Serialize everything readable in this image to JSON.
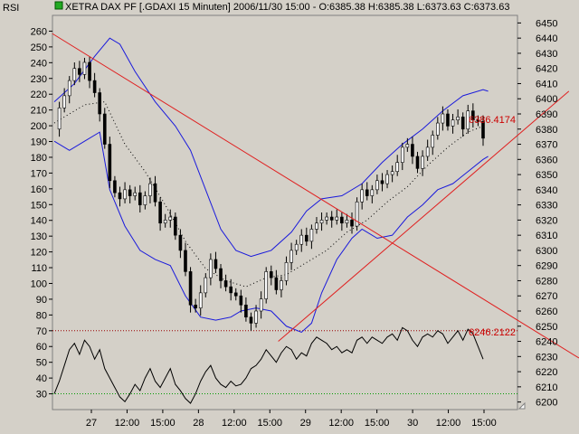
{
  "header": {
    "indicator_label": "RSI",
    "title": "XETRA DAX PF [.GDAXI  15 Minuten] 2006/11/30 15:00 - O:6385.38 H:6385.38 L:6373.63 C:6373.63",
    "title_icon": "green-square-icon"
  },
  "colors": {
    "background": "#d4d0c8",
    "trendline": "#e02020",
    "bollinger": "#1a1adc",
    "candle_up": "#ffffff",
    "candle_down": "#000000",
    "rsi_line": "#000000",
    "rsi_overbought": "#990000",
    "rsi_oversold": "#009900"
  },
  "chart_data": {
    "type": "candlestick",
    "title": "XETRA DAX PF [.GDAXI  15 Minuten] 2006/11/30 15:00 - O:6385.38 H:6385.38 L:6373.63 C:6373.63",
    "last_bar": {
      "date": "2006/11/30",
      "time": "15:00",
      "open": 6385.38,
      "high": 6385.38,
      "low": 6373.63,
      "close": 6373.63
    },
    "price_axis": {
      "side": "right",
      "range": [
        6195,
        6455
      ],
      "ticks": [
        6200,
        6210,
        6220,
        6230,
        6240,
        6250,
        6260,
        6270,
        6280,
        6290,
        6300,
        6310,
        6320,
        6330,
        6340,
        6350,
        6360,
        6370,
        6380,
        6390,
        6400,
        6410,
        6420,
        6430,
        6440,
        6450
      ]
    },
    "left_axis": {
      "range": [
        20,
        270
      ],
      "ticks": [
        30,
        40,
        50,
        60,
        70,
        80,
        90,
        100,
        110,
        120,
        130,
        140,
        150,
        160,
        170,
        180,
        190,
        200,
        210,
        220,
        230,
        240,
        250,
        260
      ]
    },
    "x_axis_labels": [
      "27",
      "12:00",
      "15:00",
      "28",
      "12:00",
      "15:00",
      "29",
      "12:00",
      "15:00",
      "30",
      "12:00",
      "15:00"
    ],
    "annotations": [
      {
        "label": "6386.4174",
        "value": 6386.4174
      },
      {
        "label": "6246.2122",
        "value": 6246.2122
      }
    ],
    "price_path": [
      [
        0,
        6380
      ],
      [
        5,
        6394
      ],
      [
        10,
        6402
      ],
      [
        15,
        6412
      ],
      [
        20,
        6420
      ],
      [
        25,
        6416
      ],
      [
        30,
        6424
      ],
      [
        35,
        6412
      ],
      [
        40,
        6404
      ],
      [
        45,
        6390
      ],
      [
        50,
        6370
      ],
      [
        55,
        6346
      ],
      [
        60,
        6338
      ],
      [
        65,
        6334
      ],
      [
        70,
        6340
      ],
      [
        75,
        6336
      ],
      [
        80,
        6338
      ],
      [
        85,
        6330
      ],
      [
        90,
        6336
      ],
      [
        95,
        6344
      ],
      [
        100,
        6332
      ],
      [
        105,
        6318
      ],
      [
        110,
        6320
      ],
      [
        115,
        6322
      ],
      [
        120,
        6310
      ],
      [
        125,
        6300
      ],
      [
        130,
        6286
      ],
      [
        135,
        6264
      ],
      [
        140,
        6262
      ],
      [
        145,
        6272
      ],
      [
        150,
        6282
      ],
      [
        155,
        6294
      ],
      [
        160,
        6288
      ],
      [
        165,
        6280
      ],
      [
        170,
        6276
      ],
      [
        175,
        6272
      ],
      [
        180,
        6270
      ],
      [
        185,
        6264
      ],
      [
        190,
        6256
      ],
      [
        195,
        6252
      ],
      [
        200,
        6260
      ],
      [
        205,
        6268
      ],
      [
        210,
        6286
      ],
      [
        215,
        6282
      ],
      [
        220,
        6274
      ],
      [
        225,
        6280
      ],
      [
        230,
        6292
      ],
      [
        235,
        6300
      ],
      [
        240,
        6304
      ],
      [
        245,
        6310
      ],
      [
        250,
        6306
      ],
      [
        255,
        6314
      ],
      [
        260,
        6318
      ],
      [
        265,
        6320
      ],
      [
        270,
        6322
      ],
      [
        275,
        6320
      ],
      [
        280,
        6322
      ],
      [
        285,
        6318
      ],
      [
        290,
        6320
      ],
      [
        295,
        6316
      ],
      [
        300,
        6332
      ],
      [
        305,
        6340
      ],
      [
        310,
        6336
      ],
      [
        315,
        6340
      ],
      [
        320,
        6346
      ],
      [
        325,
        6344
      ],
      [
        330,
        6350
      ],
      [
        335,
        6352
      ],
      [
        340,
        6358
      ],
      [
        345,
        6368
      ],
      [
        350,
        6370
      ],
      [
        355,
        6362
      ],
      [
        360,
        6354
      ],
      [
        365,
        6362
      ],
      [
        370,
        6368
      ],
      [
        375,
        6376
      ],
      [
        380,
        6384
      ],
      [
        385,
        6390
      ],
      [
        390,
        6382
      ],
      [
        395,
        6386
      ],
      [
        400,
        6388
      ],
      [
        405,
        6380
      ],
      [
        410,
        6392
      ],
      [
        415,
        6386
      ],
      [
        420,
        6385
      ],
      [
        425,
        6374
      ]
    ],
    "bollinger": {
      "upper": [
        [
          0,
          6398
        ],
        [
          20,
          6410
        ],
        [
          40,
          6428
        ],
        [
          55,
          6440
        ],
        [
          65,
          6436
        ],
        [
          80,
          6418
        ],
        [
          100,
          6398
        ],
        [
          120,
          6382
        ],
        [
          135,
          6366
        ],
        [
          150,
          6340
        ],
        [
          165,
          6314
        ],
        [
          180,
          6300
        ],
        [
          195,
          6296
        ],
        [
          205,
          6298
        ],
        [
          215,
          6300
        ],
        [
          235,
          6312
        ],
        [
          250,
          6326
        ],
        [
          265,
          6334
        ],
        [
          285,
          6336
        ],
        [
          305,
          6344
        ],
        [
          325,
          6358
        ],
        [
          345,
          6370
        ],
        [
          365,
          6380
        ],
        [
          385,
          6392
        ],
        [
          405,
          6402
        ],
        [
          425,
          6406
        ],
        [
          430,
          6405
        ]
      ],
      "lower": [
        [
          0,
          6372
        ],
        [
          15,
          6366
        ],
        [
          30,
          6372
        ],
        [
          45,
          6378
        ],
        [
          55,
          6340
        ],
        [
          70,
          6316
        ],
        [
          85,
          6300
        ],
        [
          100,
          6294
        ],
        [
          115,
          6290
        ],
        [
          130,
          6270
        ],
        [
          145,
          6256
        ],
        [
          160,
          6254
        ],
        [
          175,
          6256
        ],
        [
          185,
          6260
        ],
        [
          200,
          6262
        ],
        [
          215,
          6260
        ],
        [
          230,
          6250
        ],
        [
          245,
          6246
        ],
        [
          255,
          6252
        ],
        [
          265,
          6272
        ],
        [
          280,
          6294
        ],
        [
          295,
          6308
        ],
        [
          305,
          6314
        ],
        [
          320,
          6308
        ],
        [
          335,
          6310
        ],
        [
          350,
          6322
        ],
        [
          365,
          6330
        ],
        [
          380,
          6340
        ],
        [
          395,
          6344
        ],
        [
          410,
          6352
        ],
        [
          425,
          6360
        ],
        [
          430,
          6362
        ]
      ],
      "middle": [
        [
          0,
          6384
        ],
        [
          30,
          6396
        ],
        [
          50,
          6398
        ],
        [
          70,
          6370
        ],
        [
          90,
          6352
        ],
        [
          110,
          6330
        ],
        [
          130,
          6306
        ],
        [
          150,
          6288
        ],
        [
          170,
          6280
        ],
        [
          190,
          6276
        ],
        [
          210,
          6282
        ],
        [
          230,
          6284
        ],
        [
          250,
          6292
        ],
        [
          270,
          6300
        ],
        [
          290,
          6312
        ],
        [
          310,
          6320
        ],
        [
          330,
          6332
        ],
        [
          350,
          6342
        ],
        [
          370,
          6356
        ],
        [
          390,
          6368
        ],
        [
          410,
          6378
        ],
        [
          425,
          6382
        ]
      ]
    },
    "trendlines": [
      {
        "points": [
          [
            -2,
            6443
          ],
          [
            520,
            6229
          ]
        ]
      },
      {
        "points": [
          [
            222,
            6240
          ],
          [
            510,
            6405
          ]
        ]
      }
    ],
    "rsi": {
      "overbought": 70,
      "oversold": 30,
      "values": [
        [
          0,
          30
        ],
        [
          5,
          38
        ],
        [
          10,
          48
        ],
        [
          15,
          58
        ],
        [
          20,
          62
        ],
        [
          25,
          55
        ],
        [
          30,
          64
        ],
        [
          35,
          60
        ],
        [
          40,
          52
        ],
        [
          45,
          58
        ],
        [
          50,
          46
        ],
        [
          55,
          40
        ],
        [
          60,
          34
        ],
        [
          65,
          28
        ],
        [
          70,
          25
        ],
        [
          75,
          30
        ],
        [
          80,
          36
        ],
        [
          85,
          32
        ],
        [
          90,
          40
        ],
        [
          95,
          46
        ],
        [
          100,
          38
        ],
        [
          105,
          34
        ],
        [
          110,
          40
        ],
        [
          115,
          46
        ],
        [
          120,
          36
        ],
        [
          125,
          32
        ],
        [
          130,
          27
        ],
        [
          135,
          24
        ],
        [
          140,
          30
        ],
        [
          145,
          38
        ],
        [
          150,
          44
        ],
        [
          155,
          48
        ],
        [
          160,
          40
        ],
        [
          165,
          36
        ],
        [
          170,
          34
        ],
        [
          175,
          38
        ],
        [
          180,
          35
        ],
        [
          185,
          36
        ],
        [
          190,
          40
        ],
        [
          195,
          46
        ],
        [
          200,
          48
        ],
        [
          205,
          52
        ],
        [
          210,
          58
        ],
        [
          215,
          54
        ],
        [
          220,
          50
        ],
        [
          225,
          56
        ],
        [
          230,
          60
        ],
        [
          235,
          58
        ],
        [
          240,
          52
        ],
        [
          245,
          56
        ],
        [
          250,
          54
        ],
        [
          255,
          62
        ],
        [
          260,
          66
        ],
        [
          265,
          64
        ],
        [
          270,
          62
        ],
        [
          275,
          58
        ],
        [
          280,
          60
        ],
        [
          285,
          56
        ],
        [
          290,
          58
        ],
        [
          295,
          56
        ],
        [
          300,
          64
        ],
        [
          305,
          66
        ],
        [
          310,
          62
        ],
        [
          315,
          66
        ],
        [
          320,
          64
        ],
        [
          325,
          62
        ],
        [
          330,
          66
        ],
        [
          335,
          68
        ],
        [
          340,
          64
        ],
        [
          345,
          72
        ],
        [
          350,
          70
        ],
        [
          355,
          64
        ],
        [
          360,
          60
        ],
        [
          365,
          66
        ],
        [
          370,
          68
        ],
        [
          375,
          66
        ],
        [
          380,
          70
        ],
        [
          385,
          68
        ],
        [
          390,
          62
        ],
        [
          395,
          66
        ],
        [
          400,
          70
        ],
        [
          405,
          64
        ],
        [
          410,
          71
        ],
        [
          415,
          68
        ],
        [
          420,
          60
        ],
        [
          425,
          52
        ]
      ]
    },
    "grid": false,
    "legend": "none"
  }
}
